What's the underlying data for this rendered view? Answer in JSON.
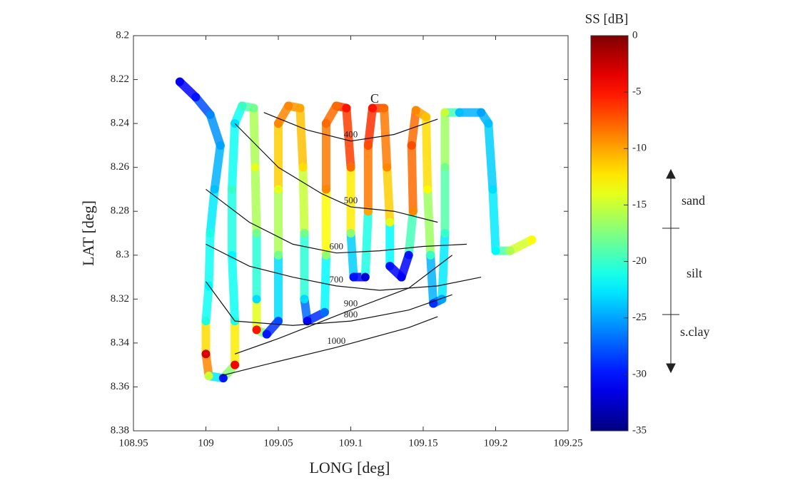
{
  "chart_data": {
    "type": "track",
    "xlabel": "LONG [deg]",
    "ylabel": "LAT [deg]",
    "xlim": [
      108.95,
      109.25
    ],
    "xticks": [
      108.95,
      109,
      109.05,
      109.1,
      109.15,
      109.2,
      109.25
    ],
    "ylim": [
      8.38,
      8.2
    ],
    "yticks": [
      8.2,
      8.22,
      8.24,
      8.26,
      8.28,
      8.3,
      8.32,
      8.34,
      8.36,
      8.38
    ],
    "track": {
      "x": [
        108.982,
        108.993,
        109.003,
        109.01,
        109.006,
        109.003,
        109.002,
        109.0,
        109.0,
        109.002,
        109.012,
        109.02,
        109.02,
        109.018,
        109.018,
        109.02,
        109.025,
        109.033,
        109.034,
        109.035,
        109.035,
        109.035,
        109.042,
        109.05,
        109.05,
        109.05,
        109.05,
        109.057,
        109.065,
        109.067,
        109.068,
        109.068,
        109.07,
        109.082,
        109.083,
        109.083,
        109.083,
        109.09,
        109.097,
        109.1,
        109.1,
        109.102,
        109.11,
        109.112,
        109.112,
        109.115,
        109.123,
        109.125,
        109.127,
        109.127,
        109.135,
        109.14,
        109.143,
        109.142,
        109.145,
        109.152,
        109.153,
        109.155,
        109.157,
        109.163,
        109.165,
        109.165,
        109.165,
        109.175,
        109.19,
        109.195,
        109.198,
        109.2,
        109.21,
        109.225
      ],
      "y": [
        8.221,
        8.228,
        8.236,
        8.25,
        8.27,
        8.29,
        8.314,
        8.33,
        8.345,
        8.355,
        8.356,
        8.35,
        8.33,
        8.3,
        8.27,
        8.24,
        8.232,
        8.233,
        8.26,
        8.29,
        8.32,
        8.334,
        8.336,
        8.33,
        8.3,
        8.27,
        8.24,
        8.232,
        8.233,
        8.26,
        8.29,
        8.32,
        8.33,
        8.326,
        8.3,
        8.27,
        8.24,
        8.232,
        8.233,
        8.26,
        8.29,
        8.31,
        8.31,
        8.28,
        8.25,
        8.233,
        8.233,
        8.26,
        8.285,
        8.305,
        8.31,
        8.3,
        8.28,
        8.25,
        8.234,
        8.237,
        8.27,
        8.3,
        8.322,
        8.32,
        8.29,
        8.26,
        8.235,
        8.235,
        8.235,
        8.24,
        8.27,
        8.298,
        8.298,
        8.293
      ],
      "values": [
        -31,
        -30,
        -26,
        -25,
        -24,
        -21,
        -22,
        -21,
        -3,
        -15,
        -30,
        -4,
        -21,
        -22,
        -20,
        -23,
        -20,
        -18,
        -14,
        -18,
        -23,
        -5,
        -30,
        -28,
        -18,
        -14,
        -9,
        -9,
        -10,
        -12,
        -18,
        -23,
        -31,
        -27,
        -17,
        -9,
        -8,
        -8,
        -5,
        -8,
        -17,
        -30,
        -32,
        -10,
        -7,
        -5,
        -8,
        -9,
        -14,
        -30,
        -31,
        -30,
        -9,
        -7,
        -9,
        -11,
        -13,
        -20,
        -29,
        -25,
        -20,
        -18,
        -15,
        -24,
        -25,
        -24,
        -23,
        -22,
        -16,
        -13
      ]
    },
    "contours": [
      {
        "level": 400,
        "x": [
          109.04,
          109.07,
          109.1,
          109.13,
          109.16
        ],
        "y": [
          8.235,
          8.243,
          8.248,
          8.245,
          8.238
        ]
      },
      {
        "level": 500,
        "x": [
          109.02,
          109.05,
          109.08,
          109.1,
          109.13,
          109.16
        ],
        "y": [
          8.24,
          8.26,
          8.272,
          8.278,
          8.28,
          8.285
        ]
      },
      {
        "level": 600,
        "x": [
          109.0,
          109.03,
          109.06,
          109.09,
          109.12,
          109.15,
          109.18
        ],
        "y": [
          8.27,
          8.285,
          8.295,
          8.299,
          8.298,
          8.296,
          8.295
        ]
      },
      {
        "level": 700,
        "x": [
          109.0,
          109.03,
          109.06,
          109.09,
          109.12,
          109.16,
          109.19
        ],
        "y": [
          8.295,
          8.305,
          8.31,
          8.314,
          8.316,
          8.314,
          8.31
        ]
      },
      {
        "level": 800,
        "x": [
          109.0,
          109.02,
          109.06,
          109.1,
          109.14,
          109.17
        ],
        "y": [
          8.312,
          8.33,
          8.332,
          8.33,
          8.325,
          8.318
        ]
      },
      {
        "level": 900,
        "x": [
          109.02,
          109.05,
          109.1,
          109.14,
          109.17
        ],
        "y": [
          8.345,
          8.338,
          8.325,
          8.315,
          8.3
        ]
      },
      {
        "level": 1000,
        "x": [
          109.01,
          109.04,
          109.09,
          109.14,
          109.16
        ],
        "y": [
          8.355,
          8.35,
          8.342,
          8.333,
          8.328
        ]
      }
    ],
    "annotation": "C",
    "colorbar": {
      "title": "SS [dB]",
      "clim": [
        -35,
        0
      ],
      "ticks": [
        0,
        -5,
        -10,
        -15,
        -20,
        -25,
        -30,
        -35
      ]
    },
    "classes": [
      "sand",
      "silt",
      "s.clay"
    ]
  }
}
